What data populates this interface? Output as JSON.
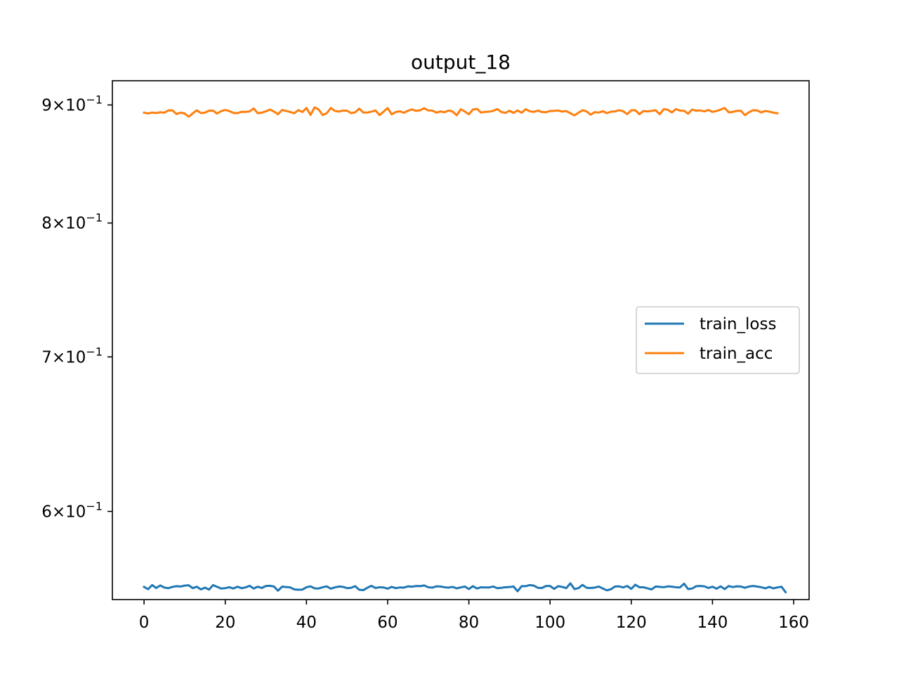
{
  "chart_data": {
    "type": "line",
    "title": "output_18",
    "xlabel": "",
    "ylabel": "",
    "yscale": "log",
    "xlim": [
      -7.8,
      163.8
    ],
    "ylim": [
      0.5495,
      0.922
    ],
    "x_ticks": [
      0,
      20,
      40,
      60,
      80,
      100,
      120,
      140,
      160
    ],
    "x_tick_labels": [
      "0",
      "20",
      "40",
      "60",
      "80",
      "100",
      "120",
      "140",
      "160"
    ],
    "y_ticks": [
      {
        "value": 0.6,
        "mantissa": "6",
        "exponent": "−1"
      },
      {
        "value": 0.7,
        "mantissa": "7",
        "exponent": "−1"
      },
      {
        "value": 0.8,
        "mantissa": "8",
        "exponent": "−1"
      },
      {
        "value": 0.9,
        "mantissa": "9",
        "exponent": "−1"
      }
    ],
    "legend": {
      "position": "center-right",
      "entries": [
        "train_loss",
        "train_acc"
      ]
    },
    "series": [
      {
        "name": "train_loss",
        "color": "#1f77b4",
        "x_start": 0,
        "x_step": 1,
        "values": [
          0.5565,
          0.5552,
          0.5575,
          0.5559,
          0.5573,
          0.5561,
          0.5558,
          0.5565,
          0.5569,
          0.5567,
          0.5572,
          0.5574,
          0.5558,
          0.5566,
          0.5551,
          0.5561,
          0.555,
          0.5575,
          0.5565,
          0.5556,
          0.5558,
          0.5563,
          0.5556,
          0.5566,
          0.5558,
          0.5562,
          0.5571,
          0.5556,
          0.5566,
          0.5559,
          0.557,
          0.5571,
          0.5567,
          0.5544,
          0.5566,
          0.5564,
          0.5562,
          0.5551,
          0.5549,
          0.555,
          0.5563,
          0.5568,
          0.5557,
          0.5556,
          0.5563,
          0.5568,
          0.5555,
          0.5562,
          0.5567,
          0.5565,
          0.5558,
          0.556,
          0.5569,
          0.5549,
          0.5547,
          0.556,
          0.5571,
          0.5559,
          0.5563,
          0.5562,
          0.5555,
          0.5565,
          0.5558,
          0.5562,
          0.5561,
          0.5568,
          0.5566,
          0.557,
          0.5569,
          0.5573,
          0.5563,
          0.5561,
          0.5568,
          0.5567,
          0.5563,
          0.5561,
          0.5565,
          0.5557,
          0.5562,
          0.5567,
          0.5553,
          0.5569,
          0.5556,
          0.5563,
          0.5562,
          0.5562,
          0.5567,
          0.5558,
          0.556,
          0.5563,
          0.5564,
          0.5567,
          0.5541,
          0.5569,
          0.5569,
          0.5575,
          0.5572,
          0.556,
          0.5559,
          0.557,
          0.557,
          0.5554,
          0.5569,
          0.5565,
          0.5558,
          0.5585,
          0.5553,
          0.5558,
          0.5576,
          0.556,
          0.5559,
          0.5561,
          0.5567,
          0.5556,
          0.5546,
          0.5552,
          0.5567,
          0.5568,
          0.5562,
          0.557,
          0.5554,
          0.5577,
          0.5563,
          0.5563,
          0.5557,
          0.5551,
          0.5567,
          0.5565,
          0.5563,
          0.5568,
          0.5566,
          0.5563,
          0.5562,
          0.5583,
          0.5553,
          0.5556,
          0.5569,
          0.557,
          0.5568,
          0.5559,
          0.5566,
          0.5555,
          0.5568,
          0.5553,
          0.557,
          0.5564,
          0.5568,
          0.5567,
          0.556,
          0.5567,
          0.557,
          0.5567,
          0.5563,
          0.5557,
          0.5565,
          0.5557,
          0.5562,
          0.5566,
          0.5536
        ]
      },
      {
        "name": "train_acc",
        "color": "#ff7f0e",
        "x_start": 0,
        "x_step": 1,
        "values": [
          0.8931,
          0.8924,
          0.8932,
          0.8928,
          0.8935,
          0.8931,
          0.8951,
          0.8951,
          0.8919,
          0.8931,
          0.8924,
          0.8895,
          0.8925,
          0.8952,
          0.8928,
          0.8931,
          0.8949,
          0.8949,
          0.8923,
          0.8945,
          0.8955,
          0.8945,
          0.8929,
          0.8926,
          0.8939,
          0.8938,
          0.8942,
          0.8969,
          0.8926,
          0.8931,
          0.8943,
          0.8958,
          0.8941,
          0.8917,
          0.8955,
          0.8947,
          0.8937,
          0.8926,
          0.8954,
          0.8937,
          0.8973,
          0.8911,
          0.8978,
          0.896,
          0.891,
          0.8926,
          0.8973,
          0.8947,
          0.8941,
          0.895,
          0.8949,
          0.8927,
          0.8934,
          0.8967,
          0.8932,
          0.8932,
          0.894,
          0.8951,
          0.891,
          0.894,
          0.8972,
          0.8916,
          0.8937,
          0.8943,
          0.893,
          0.8948,
          0.896,
          0.8947,
          0.8952,
          0.8971,
          0.8951,
          0.895,
          0.8931,
          0.8942,
          0.8935,
          0.895,
          0.8941,
          0.8908,
          0.8961,
          0.8942,
          0.8917,
          0.8959,
          0.8965,
          0.8932,
          0.8938,
          0.894,
          0.8947,
          0.8963,
          0.8937,
          0.8929,
          0.8948,
          0.8929,
          0.8951,
          0.893,
          0.8962,
          0.8943,
          0.8938,
          0.8949,
          0.8937,
          0.8935,
          0.8946,
          0.8947,
          0.895,
          0.8941,
          0.8945,
          0.8926,
          0.8907,
          0.8931,
          0.8953,
          0.8942,
          0.8913,
          0.8936,
          0.8932,
          0.8944,
          0.8927,
          0.894,
          0.8942,
          0.8953,
          0.8944,
          0.8918,
          0.8952,
          0.8953,
          0.8917,
          0.8946,
          0.8942,
          0.8947,
          0.8952,
          0.8917,
          0.8962,
          0.8957,
          0.8933,
          0.8963,
          0.8949,
          0.8948,
          0.8922,
          0.8959,
          0.8948,
          0.8951,
          0.8943,
          0.8955,
          0.8938,
          0.8946,
          0.8958,
          0.8973,
          0.8934,
          0.8938,
          0.8947,
          0.8948,
          0.8909,
          0.8935,
          0.8953,
          0.8951,
          0.8933,
          0.8946,
          0.894,
          0.8931,
          0.8926
        ]
      }
    ]
  }
}
